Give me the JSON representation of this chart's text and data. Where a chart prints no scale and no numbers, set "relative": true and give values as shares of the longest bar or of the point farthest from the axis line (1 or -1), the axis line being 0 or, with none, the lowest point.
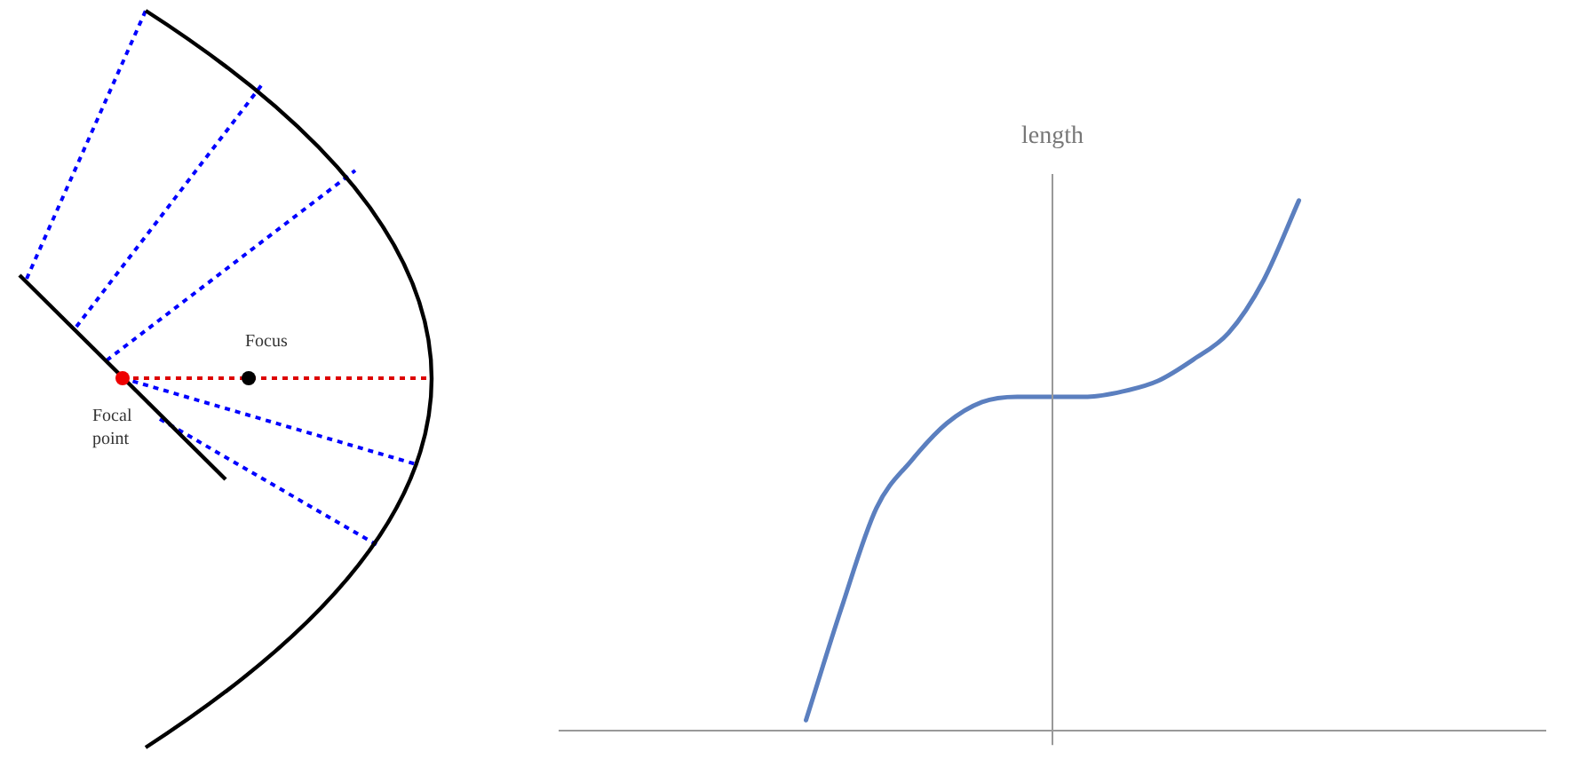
{
  "chart_data": [
    {
      "type": "other",
      "annotations": [
        "Focus",
        "Focal point"
      ]
    },
    {
      "type": "line",
      "ylabel": "length",
      "relative": true,
      "marker": "none",
      "line_style": "solid",
      "legend": false,
      "grid": false,
      "categories": [
        null,
        null,
        null,
        null,
        null,
        null,
        null,
        null,
        null,
        null,
        null,
        null,
        null,
        null,
        null,
        null,
        null,
        null,
        null,
        null,
        null,
        null,
        null,
        null,
        null,
        null,
        null,
        null,
        null
      ],
      "series": [
        {
          "color": "#5b7fbf",
          "values": [
            null,
            null,
            null,
            null,
            null,
            null,
            null,
            0.02,
            0.23,
            0.42,
            0.51,
            0.58,
            0.62,
            0.63,
            0.63,
            0.63,
            0.64,
            0.66,
            0.7,
            0.75,
            0.85,
            1,
            null,
            null,
            null,
            null,
            null,
            null,
            null
          ]
        }
      ]
    }
  ]
}
